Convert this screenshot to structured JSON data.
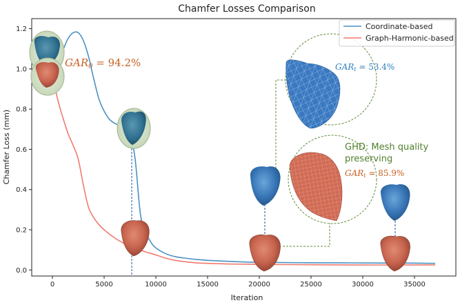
{
  "chart_data": {
    "type": "line",
    "title": "Chamfer Losses Comparison",
    "xlabel": "Iteration",
    "ylabel": "Chamfer Loss (mm)",
    "xlim": [
      -2000,
      39000
    ],
    "ylim": [
      -0.03,
      1.25
    ],
    "xticks": [
      0,
      5000,
      10000,
      15000,
      20000,
      25000,
      30000,
      35000
    ],
    "yticks": [
      0.0,
      0.2,
      0.4,
      0.6,
      0.8,
      1.0,
      1.2
    ],
    "xtick_labels": [
      "0",
      "5000",
      "10000",
      "15000",
      "20000",
      "25000",
      "30000",
      "35000"
    ],
    "ytick_labels": [
      "0.0",
      "0.2",
      "0.4",
      "0.6",
      "0.8",
      "1.0",
      "1.2"
    ],
    "grid": false,
    "legend_position": "top-right",
    "series": [
      {
        "name": "Coordinate-based",
        "color": "#4a90c4",
        "x": [
          0,
          500,
          1000,
          1500,
          2000,
          2500,
          3000,
          3500,
          4000,
          4500,
          5000,
          5500,
          6000,
          6500,
          7000,
          7500,
          8000,
          8500,
          9000,
          9500,
          10000,
          11000,
          12000,
          13000,
          14000,
          15000,
          17000,
          20000,
          25000,
          30000,
          35000,
          37000
        ],
        "values": [
          1.0,
          1.03,
          1.09,
          1.15,
          1.18,
          1.18,
          1.14,
          1.06,
          0.95,
          0.85,
          0.79,
          0.75,
          0.73,
          0.72,
          0.71,
          0.68,
          0.55,
          0.28,
          0.19,
          0.14,
          0.11,
          0.08,
          0.065,
          0.058,
          0.052,
          0.048,
          0.043,
          0.038,
          0.036,
          0.035,
          0.034,
          0.033
        ]
      },
      {
        "name": "Graph-Harmonic-based",
        "color": "#f07a6e",
        "x": [
          0,
          500,
          1000,
          1500,
          2000,
          2500,
          3000,
          3500,
          4000,
          4500,
          5000,
          6000,
          7000,
          8000,
          9000,
          10000,
          11000,
          12000,
          13000,
          14000,
          15000,
          17000,
          20000,
          25000,
          30000,
          35000,
          37000
        ],
        "values": [
          0.97,
          0.85,
          0.76,
          0.68,
          0.62,
          0.55,
          0.42,
          0.31,
          0.26,
          0.225,
          0.2,
          0.16,
          0.13,
          0.11,
          0.09,
          0.075,
          0.058,
          0.047,
          0.04,
          0.035,
          0.033,
          0.03,
          0.028,
          0.026,
          0.025,
          0.025,
          0.025
        ]
      }
    ],
    "annotations": {
      "gar0_base": "GAR",
      "gar0_sub": "0",
      "gar0_value": " = 94.2%",
      "gart_base": "GAR",
      "gart_sub": "t",
      "gart_coord_value": " = 53.4%",
      "gart_ghd_value": " = 85.9%",
      "ghd_line1": "GHD: Mesh quality",
      "ghd_line2": "preserving"
    },
    "colors": {
      "coord_text": "#2e7fbd",
      "gar0_text": "#c76022",
      "ghd_text": "#4e7f2a",
      "ghd_gar_text": "#c76022",
      "mesh_blue": "#3b78b8",
      "mesh_red": "#c8654f",
      "zoom_circle": "#5d8a3a",
      "guide_line": "#1f4e99"
    }
  }
}
